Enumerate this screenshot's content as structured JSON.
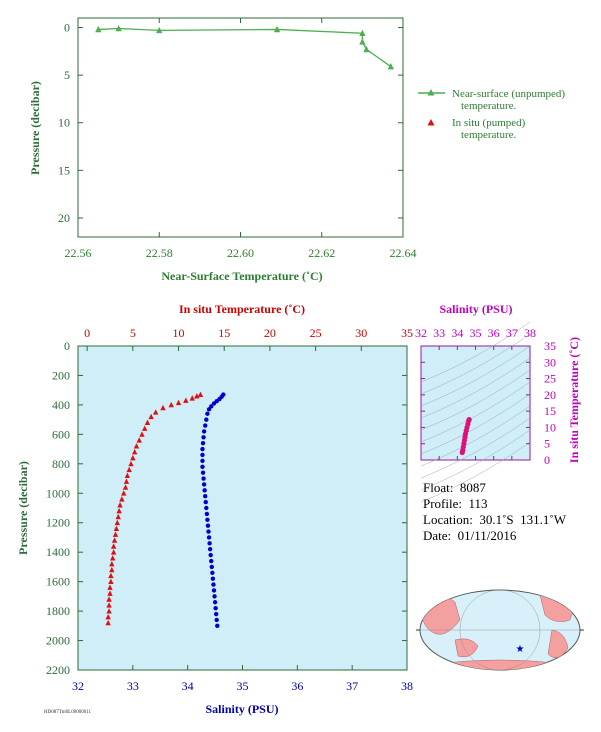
{
  "chart_data": [
    {
      "id": "near_surface",
      "type": "line",
      "xlabel": "Near-Surface Temperature (˚C)",
      "ylabel": "Pressure (decibar)",
      "xlim": [
        22.56,
        22.64
      ],
      "ylim": [
        22,
        -1
      ],
      "x_ticks": [
        "22.56",
        "22.58",
        "22.60",
        "22.62",
        "22.64"
      ],
      "y_ticks": [
        "0",
        "5",
        "10",
        "15",
        "20"
      ],
      "series": [
        {
          "name": "Near-surface (unpumped) temperature.",
          "color": "#4caf50",
          "marker": "triangle",
          "points": [
            [
              22.565,
              0.2
            ],
            [
              22.57,
              0.1
            ],
            [
              22.58,
              0.3
            ],
            [
              22.609,
              0.2
            ],
            [
              22.63,
              0.6
            ],
            [
              22.63,
              1.5
            ],
            [
              22.631,
              2.3
            ],
            [
              22.637,
              4.1
            ]
          ]
        }
      ],
      "legend": [
        {
          "label": "Near-surface (unpumped)",
          "label2": "temperature.",
          "color": "#4caf50",
          "marker": "line-triangle"
        },
        {
          "label": "In situ (pumped)",
          "label2": "temperature.",
          "color": "#e01010",
          "marker": "triangle"
        }
      ]
    },
    {
      "id": "profile",
      "type": "scatter",
      "top_xlabel": "In situ Temperature (˚C)",
      "bottom_xlabel": "Salinity (PSU)",
      "ylabel": "Pressure (decibar)",
      "temp_lim": [
        -1,
        35
      ],
      "sal_lim": [
        32,
        38
      ],
      "ylim": [
        0,
        2200
      ],
      "temp_ticks": [
        "0",
        "5",
        "10",
        "15",
        "20",
        "25",
        "30",
        "35"
      ],
      "sal_ticks": [
        "32",
        "33",
        "34",
        "35",
        "36",
        "37",
        "38"
      ],
      "y_ticks": [
        "0",
        "200",
        "400",
        "600",
        "800",
        "1000",
        "1200",
        "1400",
        "1600",
        "1800",
        "2000",
        "2200"
      ],
      "background": "#cfeef8",
      "temperature": {
        "color": "#e01010",
        "points": [
          [
            12.4,
            330
          ],
          [
            12.0,
            340
          ],
          [
            11.5,
            355
          ],
          [
            10.8,
            370
          ],
          [
            10.0,
            385
          ],
          [
            9.2,
            400
          ],
          [
            8.3,
            420
          ],
          [
            7.5,
            450
          ],
          [
            7.0,
            480
          ],
          [
            6.6,
            520
          ],
          [
            6.3,
            560
          ],
          [
            6.0,
            600
          ],
          [
            5.7,
            640
          ],
          [
            5.4,
            680
          ],
          [
            5.2,
            720
          ],
          [
            5.0,
            760
          ],
          [
            4.8,
            800
          ],
          [
            4.6,
            840
          ],
          [
            4.4,
            880
          ],
          [
            4.3,
            920
          ],
          [
            4.2,
            960
          ],
          [
            4.0,
            1000
          ],
          [
            3.8,
            1040
          ],
          [
            3.6,
            1080
          ],
          [
            3.5,
            1120
          ],
          [
            3.4,
            1160
          ],
          [
            3.3,
            1200
          ],
          [
            3.2,
            1240
          ],
          [
            3.1,
            1280
          ],
          [
            3.0,
            1320
          ],
          [
            2.9,
            1360
          ],
          [
            2.9,
            1400
          ],
          [
            2.8,
            1440
          ],
          [
            2.7,
            1480
          ],
          [
            2.7,
            1520
          ],
          [
            2.6,
            1560
          ],
          [
            2.6,
            1600
          ],
          [
            2.5,
            1640
          ],
          [
            2.5,
            1680
          ],
          [
            2.4,
            1720
          ],
          [
            2.4,
            1760
          ],
          [
            2.4,
            1800
          ],
          [
            2.3,
            1840
          ],
          [
            2.3,
            1880
          ]
        ]
      },
      "salinity": {
        "color": "#0000cc",
        "points": [
          [
            34.65,
            330
          ],
          [
            34.62,
            345
          ],
          [
            34.58,
            360
          ],
          [
            34.53,
            375
          ],
          [
            34.48,
            390
          ],
          [
            34.43,
            410
          ],
          [
            34.39,
            430
          ],
          [
            34.36,
            460
          ],
          [
            34.34,
            500
          ],
          [
            34.32,
            540
          ],
          [
            34.3,
            580
          ],
          [
            34.29,
            620
          ],
          [
            34.28,
            660
          ],
          [
            34.27,
            700
          ],
          [
            34.27,
            740
          ],
          [
            34.27,
            780
          ],
          [
            34.27,
            820
          ],
          [
            34.28,
            860
          ],
          [
            34.29,
            900
          ],
          [
            34.3,
            940
          ],
          [
            34.31,
            980
          ],
          [
            34.32,
            1020
          ],
          [
            34.33,
            1060
          ],
          [
            34.34,
            1100
          ],
          [
            34.35,
            1140
          ],
          [
            34.36,
            1180
          ],
          [
            34.37,
            1220
          ],
          [
            34.38,
            1260
          ],
          [
            34.39,
            1300
          ],
          [
            34.4,
            1340
          ],
          [
            34.41,
            1380
          ],
          [
            34.42,
            1420
          ],
          [
            34.43,
            1460
          ],
          [
            34.44,
            1500
          ],
          [
            34.45,
            1540
          ],
          [
            34.46,
            1580
          ],
          [
            34.47,
            1620
          ],
          [
            34.48,
            1660
          ],
          [
            34.49,
            1700
          ],
          [
            34.5,
            1740
          ],
          [
            34.51,
            1780
          ],
          [
            34.52,
            1820
          ],
          [
            34.53,
            1860
          ],
          [
            34.54,
            1900
          ]
        ]
      }
    },
    {
      "id": "ts_diagram",
      "type": "scatter",
      "xlabel": "Salinity (PSU)",
      "ylabel": "In situ Temperature (˚C)",
      "xlim": [
        32,
        38
      ],
      "ylim": [
        0,
        35
      ],
      "x_ticks": [
        "32",
        "33",
        "34",
        "35",
        "36",
        "37",
        "38"
      ],
      "y_ticks": [
        "0",
        "5",
        "10",
        "15",
        "20",
        "25",
        "30",
        "35"
      ],
      "color": "#e0107a",
      "points": [
        [
          34.27,
          2.3
        ],
        [
          34.3,
          3.0
        ],
        [
          34.33,
          4.0
        ],
        [
          34.36,
          5.0
        ],
        [
          34.39,
          6.0
        ],
        [
          34.42,
          7.0
        ],
        [
          34.45,
          8.0
        ],
        [
          34.49,
          9.0
        ],
        [
          34.53,
          10.0
        ],
        [
          34.58,
          11.0
        ],
        [
          34.62,
          12.0
        ],
        [
          34.65,
          12.4
        ]
      ]
    }
  ],
  "float_info": {
    "float": "Float:  8087",
    "profile": "Profile:  113",
    "location": "Location:  30.1˚S  131.1˚W",
    "date": "Date:  01/11/2016"
  },
  "footer_code": "HD087Tm0L00000011",
  "map": {
    "land_color": "#f4a0a0",
    "ocean_color": "#d8f0fa",
    "marker_color": "#0000cc"
  }
}
